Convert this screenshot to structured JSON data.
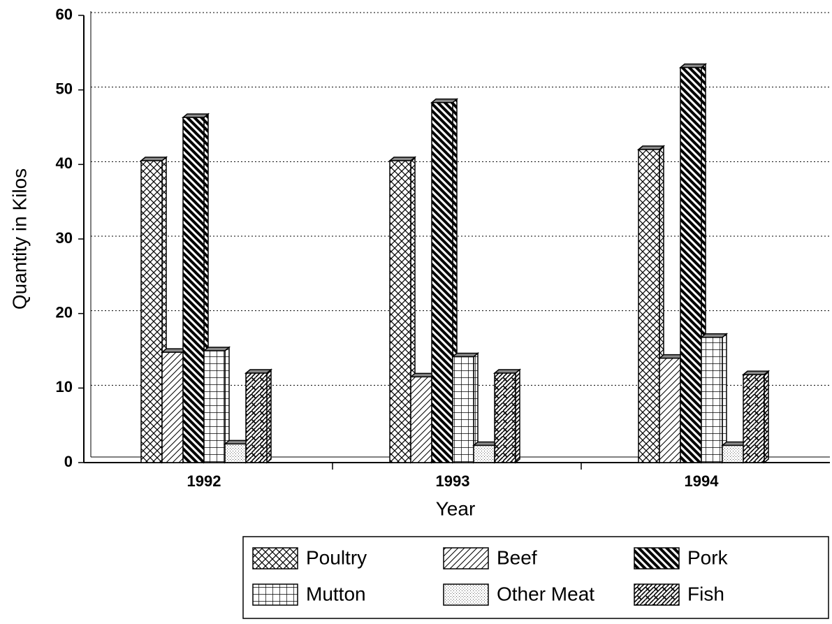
{
  "chart_data": {
    "type": "bar",
    "x_label": "Year",
    "y_label": "Quantity in Kilos",
    "categories": [
      "1992",
      "1993",
      "1994"
    ],
    "series": [
      {
        "name": "Poultry",
        "color": "#000000",
        "pattern": "crosshatch",
        "values": [
          40.5,
          40.5,
          42
        ]
      },
      {
        "name": "Beef",
        "color": "#000000",
        "pattern": "diagonal",
        "values": [
          14.8,
          11.5,
          14
        ]
      },
      {
        "name": "Pork",
        "color": "#000000",
        "pattern": "dense-diagonal",
        "values": [
          46.3,
          48.3,
          53
        ]
      },
      {
        "name": "Mutton",
        "color": "#000000",
        "pattern": "grid",
        "values": [
          15,
          14.2,
          16.8
        ]
      },
      {
        "name": "Other Meat",
        "color": "#000000",
        "pattern": "dots",
        "values": [
          2.5,
          2.3,
          2.3
        ]
      },
      {
        "name": "Fish",
        "color": "#000000",
        "pattern": "weave",
        "values": [
          12,
          12,
          11.8
        ]
      }
    ],
    "ylim": [
      0,
      60
    ],
    "yticks": [
      0,
      10,
      20,
      30,
      40,
      50,
      60
    ],
    "grid": true
  }
}
